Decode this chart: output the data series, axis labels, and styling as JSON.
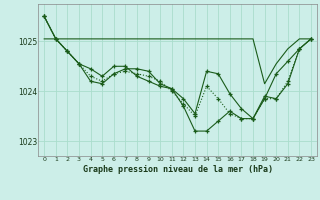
{
  "title": "Graphe pression niveau de la mer (hPa)",
  "bg_color": "#cceee8",
  "grid_color": "#aaddcc",
  "line_color": "#1a5c1a",
  "xlim": [
    -0.5,
    23.5
  ],
  "ylim": [
    1022.7,
    1025.75
  ],
  "yticks": [
    1023,
    1024,
    1025
  ],
  "xticks": [
    0,
    1,
    2,
    3,
    4,
    5,
    6,
    7,
    8,
    9,
    10,
    11,
    12,
    13,
    14,
    15,
    16,
    17,
    18,
    19,
    20,
    21,
    22,
    23
  ],
  "series": [
    {
      "x": [
        0,
        1,
        2,
        3,
        4,
        5,
        6,
        7,
        8,
        9,
        10,
        11,
        12,
        13,
        14,
        15,
        16,
        17,
        18,
        19,
        20,
        21,
        22,
        23
      ],
      "y": [
        1025.05,
        1025.05,
        1025.05,
        1025.05,
        1025.05,
        1025.05,
        1025.05,
        1025.05,
        1025.05,
        1025.05,
        1025.05,
        1025.05,
        1025.05,
        1025.05,
        1025.05,
        1025.05,
        1025.05,
        1025.05,
        1025.05,
        1024.15,
        1024.55,
        1024.85,
        1025.05,
        1025.05
      ],
      "style": "solid",
      "marker": null
    },
    {
      "x": [
        0,
        1,
        2,
        3,
        4,
        5,
        6,
        7,
        8,
        9,
        10,
        11,
        12,
        13,
        14,
        15,
        16,
        17,
        18,
        19,
        20,
        21,
        22,
        23
      ],
      "y": [
        1025.5,
        1025.05,
        1024.8,
        1024.55,
        1024.45,
        1024.3,
        1024.5,
        1024.5,
        1024.3,
        1024.2,
        1024.1,
        1024.05,
        1023.7,
        1023.2,
        1023.2,
        1023.4,
        1023.6,
        1023.45,
        1023.45,
        1023.85,
        1024.35,
        1024.6,
        1024.85,
        1025.05
      ],
      "style": "solid",
      "marker": "+"
    },
    {
      "x": [
        0,
        1,
        2,
        3,
        4,
        5,
        6,
        7,
        8,
        9,
        10,
        11,
        12,
        13,
        14,
        15,
        16,
        17,
        18,
        19,
        20,
        21,
        22,
        23
      ],
      "y": [
        1025.5,
        1025.05,
        1024.8,
        1024.55,
        1024.2,
        1024.15,
        1024.35,
        1024.45,
        1024.45,
        1024.4,
        1024.15,
        1024.05,
        1023.85,
        1023.55,
        1024.4,
        1024.35,
        1023.95,
        1023.65,
        1023.45,
        1023.9,
        1023.85,
        1024.15,
        1024.85,
        1025.05
      ],
      "style": "solid",
      "marker": "+"
    },
    {
      "x": [
        0,
        1,
        2,
        3,
        4,
        5,
        6,
        7,
        8,
        9,
        10,
        11,
        12,
        13,
        14,
        15,
        16,
        17,
        18,
        19,
        20,
        21,
        22,
        23
      ],
      "y": [
        1025.5,
        1025.05,
        1024.8,
        1024.55,
        1024.3,
        1024.2,
        1024.35,
        1024.4,
        1024.35,
        1024.3,
        1024.2,
        1024.0,
        1023.75,
        1023.5,
        1024.1,
        1023.85,
        1023.55,
        1023.45,
        1023.45,
        1023.85,
        1023.85,
        1024.2,
        1024.85,
        1025.05
      ],
      "style": "dotted",
      "marker": "+"
    }
  ]
}
